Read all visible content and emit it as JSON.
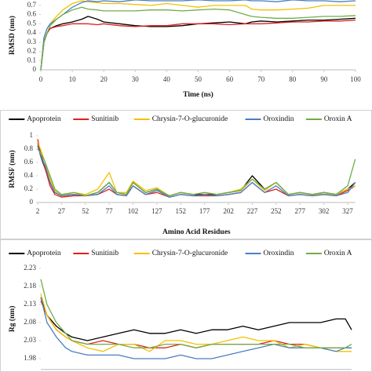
{
  "chart_data": [
    {
      "type": "line",
      "xlabel": "Time (ns)",
      "ylabel": "RMSD (nm)",
      "x": [
        0,
        1,
        2,
        3,
        5,
        7,
        10,
        13,
        15,
        18,
        20,
        25,
        30,
        35,
        40,
        45,
        50,
        55,
        60,
        65,
        67,
        70,
        75,
        80,
        85,
        90,
        95,
        100
      ],
      "xlim": [
        0,
        100
      ],
      "xticks": [
        0,
        10,
        20,
        30,
        40,
        50,
        60,
        70,
        80,
        90,
        100
      ],
      "ylim": [
        0,
        0.75
      ],
      "yticks": [
        0,
        0.1,
        0.2,
        0.3,
        0.4,
        0.5,
        0.6,
        0.7
      ],
      "series": [
        {
          "name": "Apoprotein",
          "color": "#000000",
          "values": [
            0,
            0.3,
            0.4,
            0.45,
            0.48,
            0.5,
            0.52,
            0.55,
            0.58,
            0.55,
            0.52,
            0.5,
            0.48,
            0.47,
            0.47,
            0.48,
            0.5,
            0.51,
            0.52,
            0.5,
            0.52,
            0.53,
            0.52,
            0.53,
            0.54,
            0.54,
            0.55,
            0.56
          ]
        },
        {
          "name": "Sunitinib",
          "color": "#e02020",
          "values": [
            0,
            0.3,
            0.4,
            0.45,
            0.47,
            0.48,
            0.5,
            0.5,
            0.5,
            0.49,
            0.5,
            0.48,
            0.47,
            0.48,
            0.48,
            0.5,
            0.5,
            0.5,
            0.49,
            0.5,
            0.5,
            0.5,
            0.51,
            0.52,
            0.52,
            0.53,
            0.53,
            0.54
          ]
        },
        {
          "name": "Chrysin-7-O-glucuronide",
          "color": "#f5c000",
          "values": [
            0,
            0.35,
            0.45,
            0.5,
            0.58,
            0.65,
            0.72,
            0.75,
            0.74,
            0.73,
            0.72,
            0.72,
            0.71,
            0.7,
            0.72,
            0.7,
            0.68,
            0.7,
            0.7,
            0.7,
            0.66,
            0.65,
            0.65,
            0.66,
            0.67,
            0.7,
            0.7,
            0.7
          ]
        },
        {
          "name": "Oroxindin",
          "color": "#4a7fc1",
          "values": [
            0,
            0.35,
            0.45,
            0.5,
            0.55,
            0.6,
            0.68,
            0.73,
            0.75,
            0.74,
            0.75,
            0.74,
            0.76,
            0.75,
            0.75,
            0.75,
            0.76,
            0.75,
            0.75,
            0.76,
            0.75,
            0.75,
            0.74,
            0.76,
            0.75,
            0.75,
            0.74,
            0.75
          ]
        },
        {
          "name": "Oroxin A",
          "color": "#70ad47",
          "values": [
            0,
            0.3,
            0.4,
            0.48,
            0.55,
            0.6,
            0.65,
            0.68,
            0.66,
            0.65,
            0.64,
            0.64,
            0.64,
            0.65,
            0.65,
            0.64,
            0.65,
            0.66,
            0.65,
            0.6,
            0.58,
            0.57,
            0.56,
            0.56,
            0.57,
            0.58,
            0.58,
            0.59
          ]
        }
      ]
    },
    {
      "type": "line",
      "xlabel": "Amino Acid Residues",
      "ylabel": "RMSF (nm)",
      "legend": "top",
      "x": [
        2,
        5,
        10,
        15,
        20,
        27,
        40,
        52,
        65,
        77,
        85,
        95,
        102,
        115,
        127,
        140,
        152,
        165,
        177,
        190,
        202,
        215,
        227,
        240,
        252,
        265,
        277,
        290,
        302,
        315,
        327,
        335
      ],
      "xlim": [
        2,
        335
      ],
      "xticks": [
        2,
        27,
        52,
        77,
        102,
        127,
        152,
        177,
        202,
        227,
        252,
        277,
        302,
        327
      ],
      "ylim": [
        0,
        1
      ],
      "yticks": [
        0,
        0.2,
        0.4,
        0.6,
        0.8,
        1
      ],
      "series": [
        {
          "name": "Apoprotein",
          "color": "#000000",
          "values": [
            0.9,
            0.7,
            0.5,
            0.3,
            0.15,
            0.1,
            0.12,
            0.1,
            0.15,
            0.3,
            0.15,
            0.12,
            0.3,
            0.15,
            0.2,
            0.1,
            0.15,
            0.12,
            0.12,
            0.12,
            0.15,
            0.18,
            0.4,
            0.2,
            0.3,
            0.12,
            0.15,
            0.12,
            0.15,
            0.12,
            0.2,
            0.3
          ]
        },
        {
          "name": "Sunitinib",
          "color": "#e02020",
          "values": [
            0.95,
            0.75,
            0.5,
            0.25,
            0.12,
            0.08,
            0.1,
            0.1,
            0.12,
            0.2,
            0.12,
            0.1,
            0.25,
            0.12,
            0.15,
            0.08,
            0.12,
            0.1,
            0.1,
            0.1,
            0.12,
            0.15,
            0.3,
            0.15,
            0.2,
            0.1,
            0.12,
            0.1,
            0.12,
            0.1,
            0.18,
            0.25
          ]
        },
        {
          "name": "Chrysin-7-O-glucuronide",
          "color": "#f5c000",
          "values": [
            0.9,
            0.8,
            0.6,
            0.35,
            0.18,
            0.1,
            0.15,
            0.12,
            0.2,
            0.45,
            0.15,
            0.15,
            0.32,
            0.18,
            0.22,
            0.1,
            0.15,
            0.12,
            0.15,
            0.12,
            0.15,
            0.2,
            0.35,
            0.18,
            0.3,
            0.12,
            0.15,
            0.12,
            0.12,
            0.12,
            0.2,
            0.25
          ]
        },
        {
          "name": "Oroxindin",
          "color": "#4a7fc1",
          "values": [
            0.85,
            0.7,
            0.55,
            0.3,
            0.15,
            0.1,
            0.12,
            0.1,
            0.12,
            0.25,
            0.12,
            0.1,
            0.25,
            0.12,
            0.18,
            0.08,
            0.12,
            0.1,
            0.12,
            0.1,
            0.12,
            0.15,
            0.3,
            0.15,
            0.25,
            0.1,
            0.12,
            0.1,
            0.12,
            0.1,
            0.15,
            0.3
          ]
        },
        {
          "name": "Oroxin A",
          "color": "#70ad47",
          "values": [
            0.8,
            0.75,
            0.6,
            0.4,
            0.2,
            0.12,
            0.15,
            0.1,
            0.15,
            0.3,
            0.15,
            0.12,
            0.3,
            0.15,
            0.2,
            0.1,
            0.15,
            0.12,
            0.15,
            0.12,
            0.15,
            0.18,
            0.35,
            0.2,
            0.3,
            0.12,
            0.15,
            0.12,
            0.15,
            0.12,
            0.25,
            0.65
          ]
        }
      ]
    },
    {
      "type": "line",
      "ylabel": "Rg (nm)",
      "legend": "top",
      "x": [
        0,
        2,
        5,
        8,
        10,
        15,
        20,
        25,
        30,
        35,
        40,
        45,
        50,
        55,
        60,
        65,
        70,
        75,
        80,
        85,
        90,
        95,
        98,
        100
      ],
      "xlim": [
        0,
        100
      ],
      "ylim": [
        1.95,
        2.23
      ],
      "yticks": [
        1.98,
        2.03,
        2.08,
        2.13,
        2.18,
        2.23
      ],
      "series": [
        {
          "name": "Apoprotein",
          "color": "#000000",
          "values": [
            2.15,
            2.1,
            2.07,
            2.05,
            2.04,
            2.03,
            2.04,
            2.05,
            2.06,
            2.05,
            2.05,
            2.06,
            2.05,
            2.06,
            2.06,
            2.07,
            2.06,
            2.07,
            2.08,
            2.08,
            2.08,
            2.09,
            2.09,
            2.06
          ]
        },
        {
          "name": "Sunitinib",
          "color": "#e02020",
          "values": [
            2.14,
            2.1,
            2.06,
            2.04,
            2.03,
            2.02,
            2.03,
            2.02,
            2.02,
            2.01,
            2.01,
            2.02,
            2.01,
            2.02,
            2.02,
            2.02,
            2.02,
            2.03,
            2.02,
            2.02,
            2.01,
            2.01,
            2.01,
            2.01
          ]
        },
        {
          "name": "Chrysin-7-O-glucuronide",
          "color": "#f5c000",
          "values": [
            2.16,
            2.1,
            2.06,
            2.04,
            2.03,
            2.01,
            2.0,
            2.02,
            2.02,
            2.0,
            2.03,
            2.03,
            2.02,
            2.02,
            2.03,
            2.04,
            2.03,
            2.03,
            2.01,
            2.02,
            2.01,
            2.0,
            2.0,
            2.0
          ]
        },
        {
          "name": "Oroxindin",
          "color": "#4a7fc1",
          "values": [
            2.15,
            2.08,
            2.04,
            2.01,
            2.0,
            1.99,
            1.99,
            1.99,
            1.98,
            1.98,
            1.98,
            1.99,
            1.98,
            1.98,
            1.99,
            2.0,
            2.01,
            2.02,
            2.01,
            2.01,
            2.01,
            2.0,
            2.01,
            2.01
          ]
        },
        {
          "name": "Oroxin A",
          "color": "#70ad47",
          "values": [
            2.2,
            2.13,
            2.08,
            2.05,
            2.03,
            2.02,
            2.02,
            2.02,
            2.01,
            2.01,
            2.02,
            2.02,
            2.01,
            2.02,
            2.02,
            2.02,
            2.02,
            2.02,
            2.02,
            2.01,
            2.01,
            2.01,
            2.01,
            2.02
          ]
        }
      ]
    }
  ]
}
